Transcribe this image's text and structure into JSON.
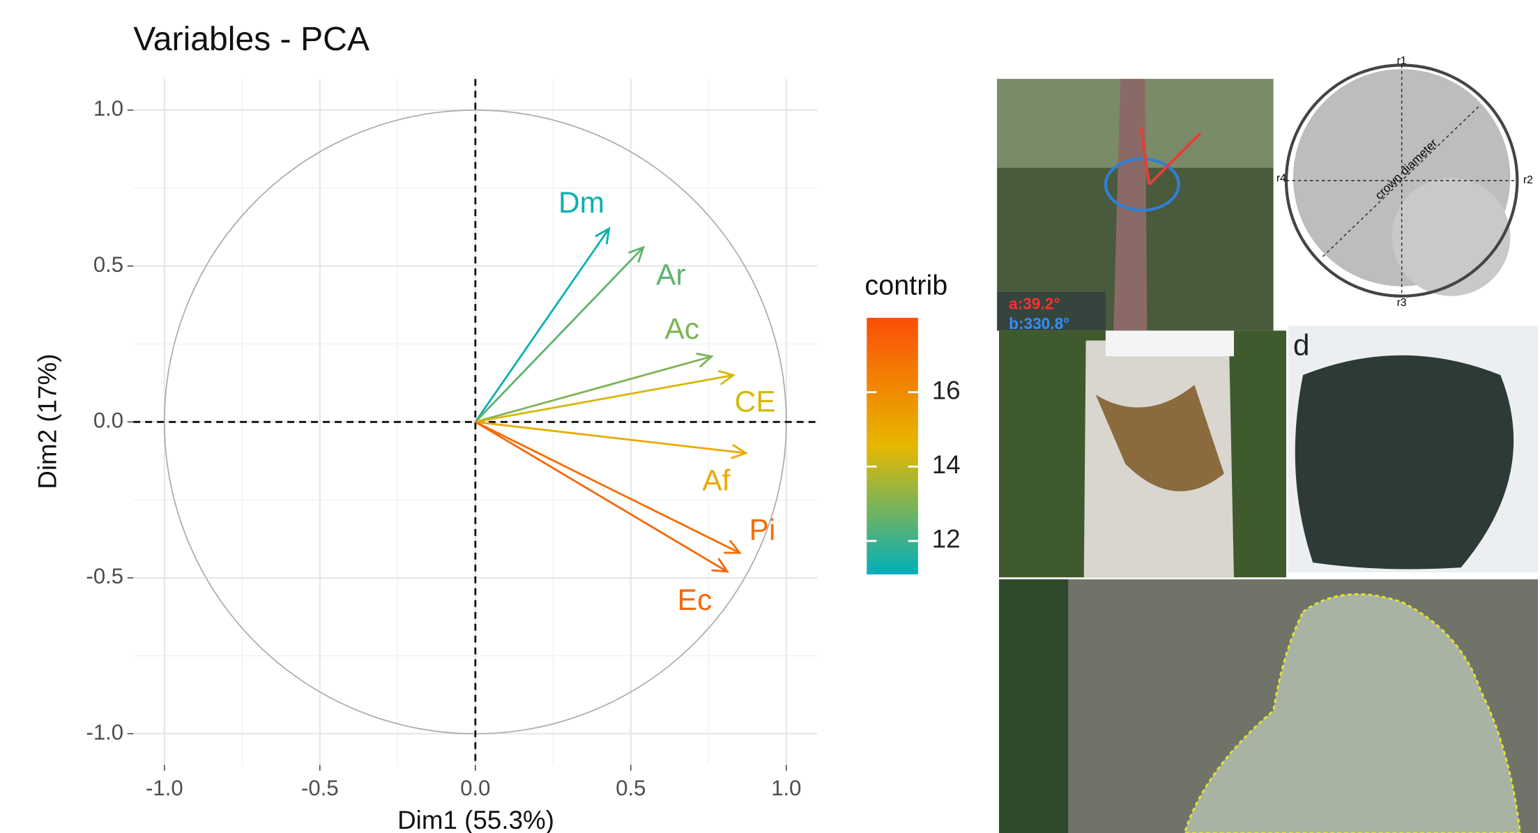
{
  "chart_data": {
    "type": "vector",
    "title": "Variables - PCA",
    "x_label": "Dim1 (55.3%)",
    "y_label": "Dim2 (17%)",
    "categories": [
      "Dm",
      "Ar",
      "Ac",
      "CE",
      "Af",
      "Pi",
      "Ec"
    ],
    "x": [
      0.43,
      0.54,
      0.76,
      0.83,
      0.87,
      0.85,
      0.81
    ],
    "values": [
      0.62,
      0.56,
      0.21,
      0.15,
      -0.1,
      -0.42,
      -0.48
    ],
    "contrib": [
      11.3,
      12.5,
      13,
      14.3,
      15,
      17,
      17.2
    ],
    "xlim": [
      -1.1,
      1.1
    ],
    "ylim": [
      -1.1,
      1.1
    ],
    "xticks": [
      {
        "value": -1,
        "label": "-1.0"
      },
      -0.5,
      {
        "value": 0,
        "label": "0.0"
      },
      0.5,
      {
        "value": 1,
        "label": "1.0"
      }
    ],
    "yticks": [
      {
        "value": -1,
        "label": "-1.0"
      },
      -0.5,
      {
        "value": 0,
        "label": "0.0"
      },
      0.5,
      {
        "value": 1,
        "label": "1.0"
      }
    ],
    "grid": true,
    "colorbar": {
      "title": "contrib",
      "lim": [
        11.1,
        18
      ],
      "ticks": [
        12,
        14,
        16
      ],
      "colors": [
        "#00AFBB",
        "#E7B800",
        "#FC4E07"
      ]
    }
  },
  "images": {
    "angle_a": "a:39.2°",
    "angle_b": "b:330.8°",
    "crown_labels": [
      "r1",
      "r2",
      "r3",
      "r4"
    ],
    "crown_diameter": "crown diameter",
    "panel_letter": "d"
  }
}
